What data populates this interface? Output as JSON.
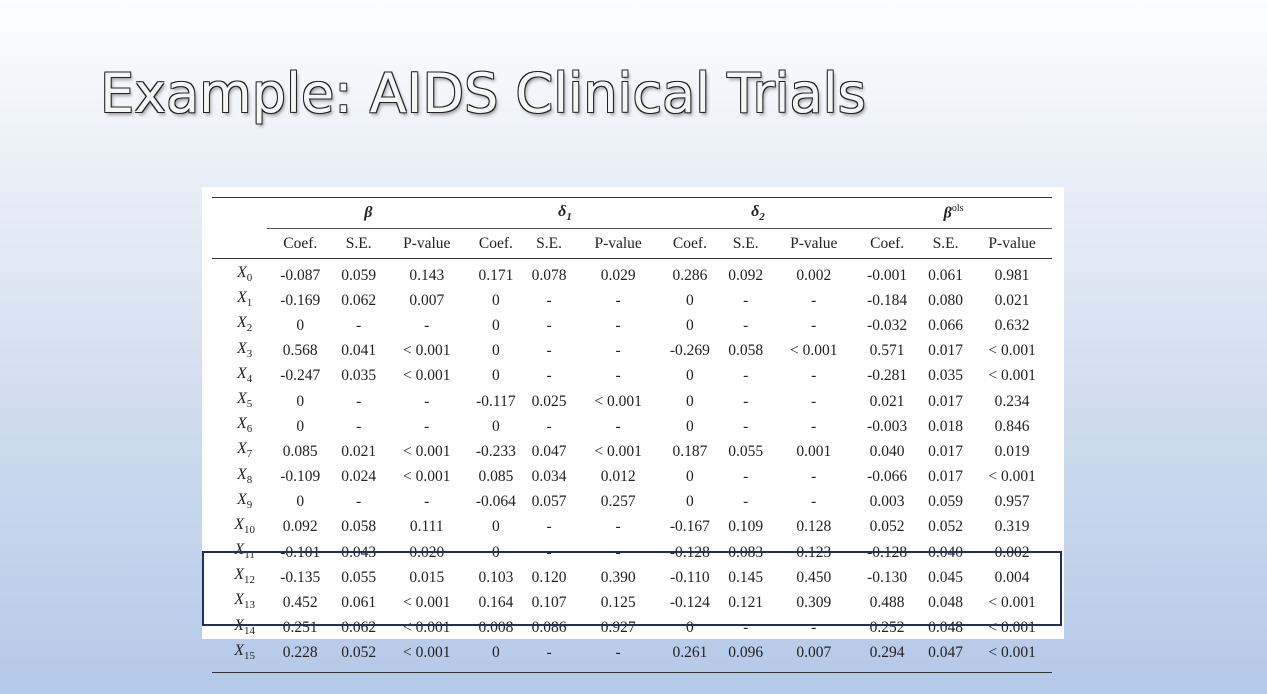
{
  "slide": {
    "title": "Example: AIDS Clinical Trials"
  },
  "table": {
    "groups": [
      {
        "symbol": "β",
        "sub": "",
        "sup": ""
      },
      {
        "symbol": "δ",
        "sub": "1",
        "sup": ""
      },
      {
        "symbol": "δ",
        "sub": "2",
        "sup": ""
      },
      {
        "symbol": "β",
        "sub": "",
        "sup": "ols"
      }
    ],
    "subheaders": [
      "Coef.",
      "S.E.",
      "P-value"
    ],
    "rows": [
      {
        "var": "X",
        "idx": "0",
        "vals": [
          "-0.087",
          "0.059",
          "0.143",
          "0.171",
          "0.078",
          "0.029",
          "0.286",
          "0.092",
          "0.002",
          "-0.001",
          "0.061",
          "0.981"
        ]
      },
      {
        "var": "X",
        "idx": "1",
        "vals": [
          "-0.169",
          "0.062",
          "0.007",
          "0",
          "-",
          "-",
          "0",
          "-",
          "-",
          "-0.184",
          "0.080",
          "0.021"
        ]
      },
      {
        "var": "X",
        "idx": "2",
        "vals": [
          "0",
          "-",
          "-",
          "0",
          "-",
          "-",
          "0",
          "-",
          "-",
          "-0.032",
          "0.066",
          "0.632"
        ]
      },
      {
        "var": "X",
        "idx": "3",
        "vals": [
          "0.568",
          "0.041",
          "< 0.001",
          "0",
          "-",
          "-",
          "-0.269",
          "0.058",
          "< 0.001",
          "0.571",
          "0.017",
          "< 0.001"
        ]
      },
      {
        "var": "X",
        "idx": "4",
        "vals": [
          "-0.247",
          "0.035",
          "< 0.001",
          "0",
          "-",
          "-",
          "0",
          "-",
          "-",
          "-0.281",
          "0.035",
          "< 0.001"
        ]
      },
      {
        "var": "X",
        "idx": "5",
        "vals": [
          "0",
          "-",
          "-",
          "-0.117",
          "0.025",
          "< 0.001",
          "0",
          "-",
          "-",
          "0.021",
          "0.017",
          "0.234"
        ]
      },
      {
        "var": "X",
        "idx": "6",
        "vals": [
          "0",
          "-",
          "-",
          "0",
          "-",
          "-",
          "0",
          "-",
          "-",
          "-0.003",
          "0.018",
          "0.846"
        ]
      },
      {
        "var": "X",
        "idx": "7",
        "vals": [
          "0.085",
          "0.021",
          "< 0.001",
          "-0.233",
          "0.047",
          "< 0.001",
          "0.187",
          "0.055",
          "0.001",
          "0.040",
          "0.017",
          "0.019"
        ]
      },
      {
        "var": "X",
        "idx": "8",
        "vals": [
          "-0.109",
          "0.024",
          "< 0.001",
          "0.085",
          "0.034",
          "0.012",
          "0",
          "-",
          "-",
          "-0.066",
          "0.017",
          "< 0.001"
        ]
      },
      {
        "var": "X",
        "idx": "9",
        "vals": [
          "0",
          "-",
          "-",
          "-0.064",
          "0.057",
          "0.257",
          "0",
          "-",
          "-",
          "0.003",
          "0.059",
          "0.957"
        ]
      },
      {
        "var": "X",
        "idx": "10",
        "vals": [
          "0.092",
          "0.058",
          "0.111",
          "0",
          "-",
          "-",
          "-0.167",
          "0.109",
          "0.128",
          "0.052",
          "0.052",
          "0.319"
        ]
      },
      {
        "var": "X",
        "idx": "11",
        "vals": [
          "-0.101",
          "0.043",
          "0.020",
          "0",
          "-",
          "-",
          "-0.128",
          "0.083",
          "0.123",
          "-0.128",
          "0.040",
          "0.002"
        ]
      },
      {
        "var": "X",
        "idx": "12",
        "vals": [
          "-0.135",
          "0.055",
          "0.015",
          "0.103",
          "0.120",
          "0.390",
          "-0.110",
          "0.145",
          "0.450",
          "-0.130",
          "0.045",
          "0.004"
        ]
      },
      {
        "var": "X",
        "idx": "13",
        "vals": [
          "0.452",
          "0.061",
          "< 0.001",
          "0.164",
          "0.107",
          "0.125",
          "-0.124",
          "0.121",
          "0.309",
          "0.488",
          "0.048",
          "< 0.001"
        ]
      },
      {
        "var": "X",
        "idx": "14",
        "vals": [
          "0.251",
          "0.062",
          "< 0.001",
          "0.008",
          "0.086",
          "0.927",
          "0",
          "-",
          "-",
          "0.252",
          "0.048",
          "< 0.001"
        ]
      },
      {
        "var": "X",
        "idx": "15",
        "vals": [
          "0.228",
          "0.052",
          "< 0.001",
          "0",
          "-",
          "-",
          "0.261",
          "0.096",
          "0.007",
          "0.294",
          "0.047",
          "< 0.001"
        ]
      }
    ],
    "highlighted_rows": [
      "13",
      "14",
      "15"
    ],
    "highlight_color": "#1f2f5e"
  }
}
